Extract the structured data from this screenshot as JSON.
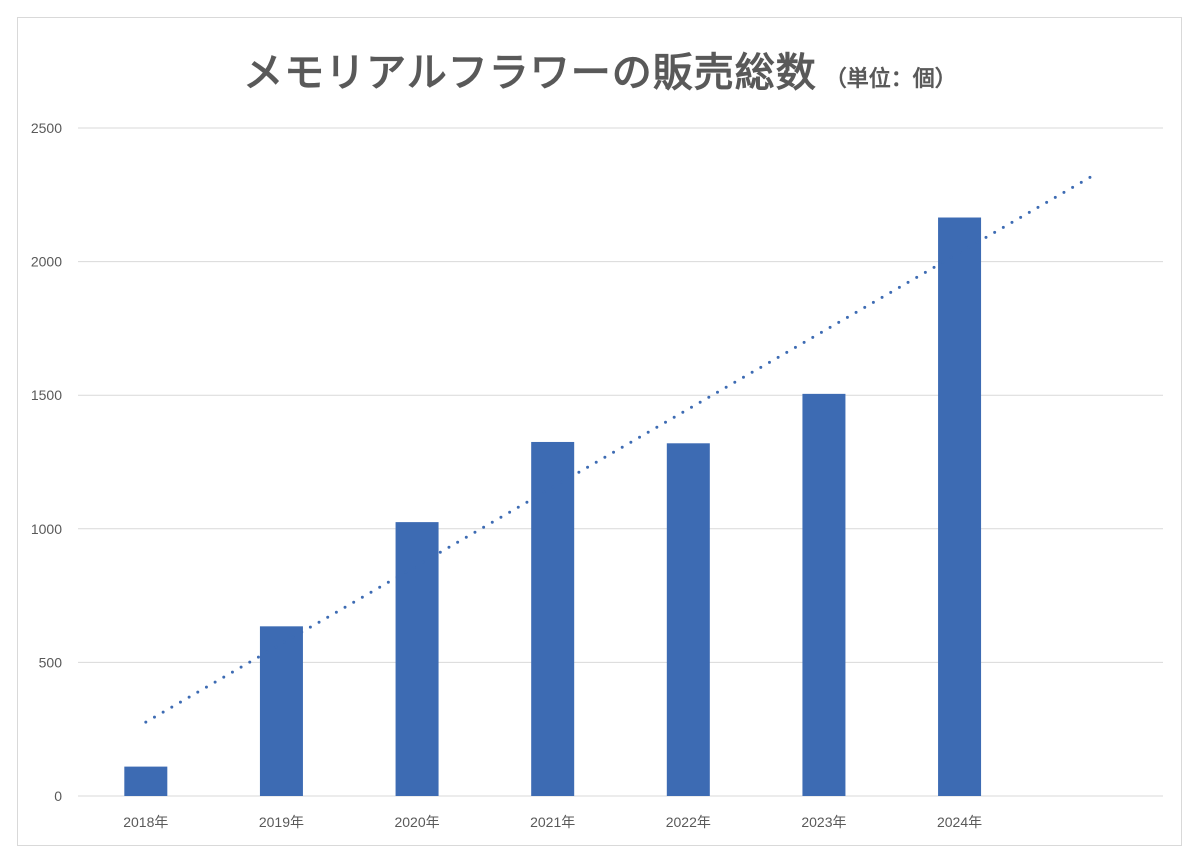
{
  "chart_data": {
    "type": "bar",
    "title": "メモリアルフラワーの販売総数",
    "subtitle": "（単位：個）",
    "categories": [
      "2018年",
      "2019年",
      "2020年",
      "2021年",
      "2022年",
      "2023年",
      "2024年"
    ],
    "values": [
      110,
      635,
      1025,
      1325,
      1320,
      1505,
      2165
    ],
    "xlabel": "",
    "ylabel": "",
    "ylim": [
      0,
      2500
    ],
    "yticks": [
      0,
      500,
      1000,
      1500,
      2000,
      2500
    ],
    "grid": true,
    "legend": "none",
    "trendline": {
      "type": "linear",
      "style": "dotted",
      "forward_periods": 1
    },
    "colors": {
      "bar": "#3d6bb3",
      "trendline": "#3d6bb3",
      "grid": "#d9d9d9",
      "text": "#595959"
    }
  }
}
